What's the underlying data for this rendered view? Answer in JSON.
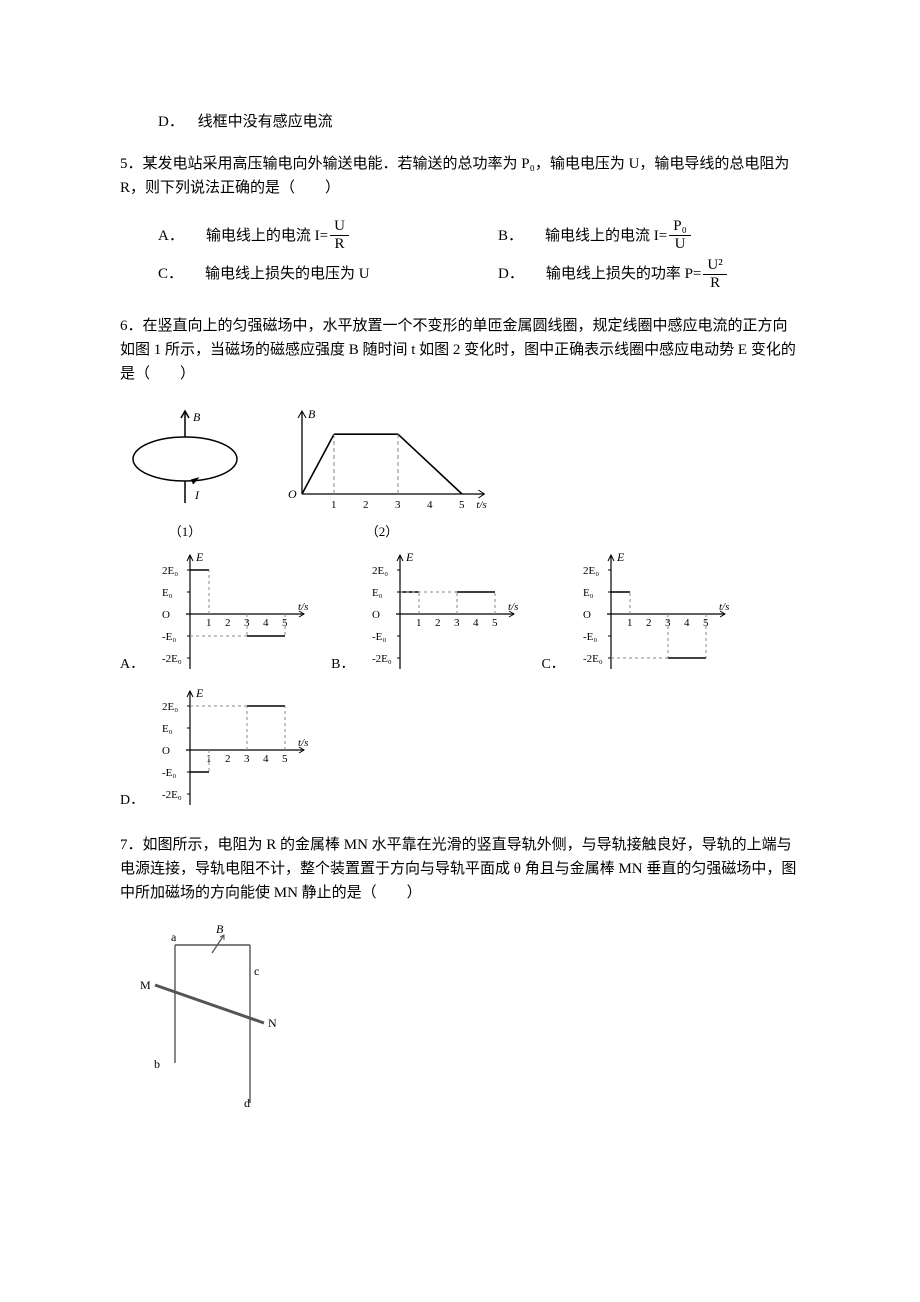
{
  "q4": {
    "option_d_letter": "D．",
    "option_d_text": "线框中没有感应电流"
  },
  "q5": {
    "text": "5．某发电站采用高压输电向外输送电能．若输送的总功率为 P₀，输电电压为 U，输电导线的总电阻为 R，则下列说法正确的是（　　）",
    "A": {
      "letter": "A．",
      "pre": "输电线上的电流 I=",
      "num": "U",
      "den": "R"
    },
    "B": {
      "letter": "B．",
      "pre": "输电线上的电流 I=",
      "num": "P₀",
      "den": "U"
    },
    "C": {
      "letter": "C．",
      "text": "输电线上损失的电压为 U"
    },
    "D": {
      "letter": "D．",
      "pre": "输电线上损失的功率 P=",
      "num": "U²",
      "den": "R"
    }
  },
  "q6": {
    "text": "6．在竖直向上的匀强磁场中，水平放置一个不变形的单匝金属圆线圈，规定线圈中感应电流的正方向如图 1 所示，当磁场的磁感应强度 B 随时间 t 如图 2 变化时，图中正确表示线圈中感应电动势 E 变化的是（　　）",
    "loop": {
      "B_label": "B",
      "I_label": "I",
      "caption": "（1）"
    },
    "Bt": {
      "y_label": "B",
      "x_label": "t/s",
      "ticks": [
        "1",
        "2",
        "3",
        "4",
        "5"
      ],
      "caption": "（2）",
      "segments": [
        [
          0,
          0,
          1,
          2.3
        ],
        [
          1,
          2.3,
          3,
          2.3
        ],
        [
          3,
          2.3,
          5,
          0
        ]
      ],
      "dashed_drops_x": [
        1,
        3
      ]
    },
    "E_graph": {
      "y_label": "E",
      "x_label": "t/s",
      "y_ticks": [
        "2E₀",
        "E₀",
        "O",
        "-E₀",
        "-2E₀"
      ],
      "x_ticks": [
        "1",
        "2",
        "3",
        "4",
        "5"
      ]
    },
    "options": {
      "A": {
        "letter": "A．",
        "bars": [
          {
            "x0": 0,
            "x1": 1,
            "y": 2
          },
          {
            "x0": 3,
            "x1": 5,
            "y": -1
          }
        ]
      },
      "B": {
        "letter": "B．",
        "bars": [
          {
            "x0": 0,
            "x1": 1,
            "y": 1
          },
          {
            "x0": 3,
            "x1": 5,
            "y": 1
          }
        ]
      },
      "C": {
        "letter": "C．",
        "bars": [
          {
            "x0": 0,
            "x1": 1,
            "y": 1
          },
          {
            "x0": 3,
            "x1": 5,
            "y": -2
          }
        ]
      },
      "D": {
        "letter": "D．",
        "bars": [
          {
            "x0": 0,
            "x1": 1,
            "y": -1
          },
          {
            "x0": 3,
            "x1": 5,
            "y": 2
          }
        ]
      }
    }
  },
  "q7": {
    "text": "7．如图所示，电阻为 R 的金属棒 MN 水平靠在光滑的竖直导轨外侧，与导轨接触良好，导轨的上端与电源连接，导轨电阻不计，整个装置置于方向与导轨平面成 θ 角且与金属棒 MN 垂直的匀强磁场中，图中所加磁场的方向能使 MN 静止的是（　　）",
    "labels": {
      "M": "M",
      "N": "N",
      "a": "a",
      "b": "b",
      "c": "c",
      "d": "d",
      "B": "B"
    }
  },
  "style": {
    "line_color": "#000000",
    "dash_color": "#888888",
    "fig7_line_color": "#555555",
    "bg": "#ffffff"
  }
}
